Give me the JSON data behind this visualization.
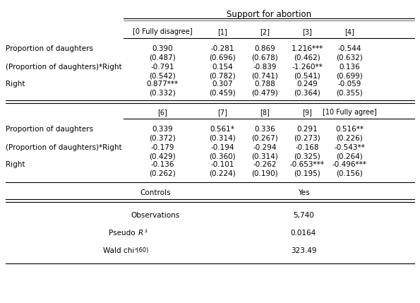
{
  "title": "Support for abortion",
  "header1": [
    "[0 Fully disagree]",
    "[1]",
    "[2]",
    "[3]",
    "[4]"
  ],
  "header2": [
    "[6]",
    "[7]",
    "[8]",
    "[9]",
    "[10 Fully agree]"
  ],
  "row_labels": [
    "Proportion of daughters",
    "(Proportion of daughters)*Right",
    "Right"
  ],
  "section1": [
    [
      "0.390",
      "-0.281",
      "0.869",
      "1.216***",
      "-0.544"
    ],
    [
      "(0.487)",
      "(0.696)",
      "(0.678)",
      "(0.462)",
      "(0.632)"
    ],
    [
      "-0.791",
      "0.154",
      "-0.839",
      "-1.260**",
      "0.136"
    ],
    [
      "(0.542)",
      "(0.782)",
      "(0.741)",
      "(0.541)",
      "(0.699)"
    ],
    [
      "0.877***",
      "0.307",
      "0.788",
      "0.249",
      "-0.059"
    ],
    [
      "(0.332)",
      "(0.459)",
      "(0.479)",
      "(0.364)",
      "(0.355)"
    ]
  ],
  "section2": [
    [
      "0.339",
      "0.561*",
      "0.336",
      "0.291",
      "0.516**"
    ],
    [
      "(0.372)",
      "(0.314)",
      "(0.267)",
      "(0.273)",
      "(0.226)"
    ],
    [
      "-0.179",
      "-0.194",
      "-0.294",
      "-0.168",
      "-0.543**"
    ],
    [
      "(0.429)",
      "(0.360)",
      "(0.314)",
      "(0.325)",
      "(0.264)"
    ],
    [
      "-0.136",
      "-0.101",
      "-0.262",
      "-0.653***",
      "-0.496***"
    ],
    [
      "(0.262)",
      "(0.224)",
      "(0.190)",
      "(0.195)",
      "(0.156)"
    ]
  ],
  "controls_val": "Yes",
  "obs_val": "5,740",
  "pseudo_r2": "0.0164",
  "wald_chi2": "323.49",
  "bg_color": "#ffffff",
  "text_color": "#000000",
  "font_size": 7.5
}
